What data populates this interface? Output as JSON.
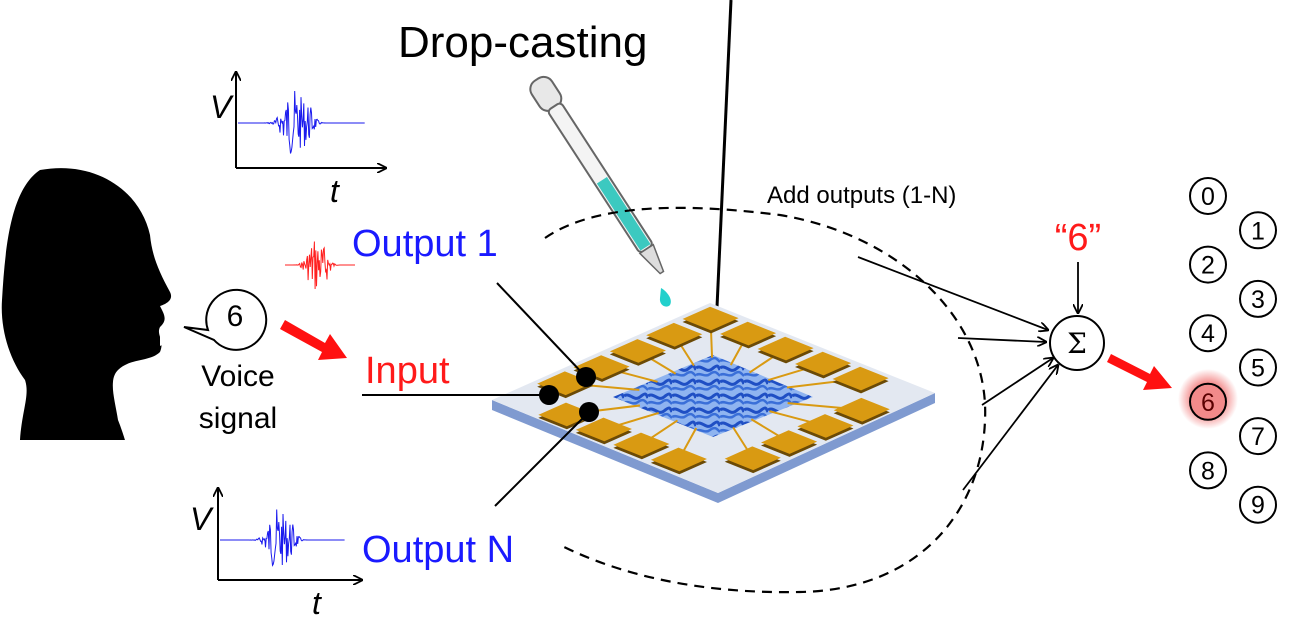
{
  "labels": {
    "drop_casting": "Drop-casting",
    "output_1": "Output 1",
    "input": "Input",
    "output_n": "Output N",
    "add_outputs": "Add outputs (1-N)",
    "recognized": "“6”",
    "sigma": "Σ",
    "spoken_digit": "6",
    "voice_line1": "Voice",
    "voice_line2": "signal",
    "v_axis": "V",
    "t_axis": "t"
  },
  "digits": [
    "0",
    "1",
    "2",
    "3",
    "4",
    "5",
    "6",
    "7",
    "8",
    "9"
  ],
  "highlighted_digit": "6",
  "colors": {
    "output_text": "#1a1aff",
    "input_text": "#ff1a1a",
    "waveform": "#1a1aee",
    "input_waveform": "#ff2020",
    "pad": "#d99a12",
    "network": "#3a6fd8",
    "substrate": "#dfe6f2",
    "highlight": "#f06a6a",
    "droplet": "#22d0cc"
  }
}
